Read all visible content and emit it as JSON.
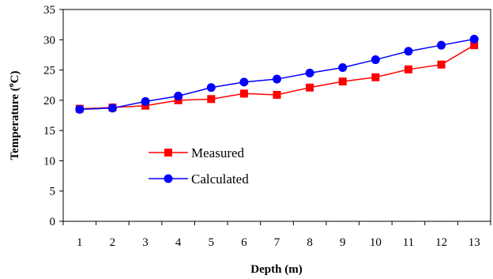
{
  "chart_data": {
    "type": "line",
    "xlabel": "Depth (m)",
    "ylabel": {
      "main": "Temperature (",
      "sup": "o",
      "unit": "C)"
    },
    "x": [
      1,
      2,
      3,
      4,
      5,
      6,
      7,
      8,
      9,
      10,
      11,
      12,
      13
    ],
    "ylim": [
      0,
      35
    ],
    "yticks": [
      0,
      5,
      10,
      15,
      20,
      25,
      30,
      35
    ],
    "grid": false,
    "legend_position": "center-left",
    "series": [
      {
        "name": "Measured",
        "color": "#FF0000",
        "marker": "square",
        "values": [
          18.6,
          18.8,
          19.1,
          20.0,
          20.2,
          21.1,
          20.9,
          22.1,
          23.1,
          23.8,
          25.1,
          25.9,
          29.1
        ]
      },
      {
        "name": "Calculated",
        "color": "#0000FF",
        "marker": "circle",
        "values": [
          18.5,
          18.7,
          19.8,
          20.7,
          22.1,
          23.0,
          23.5,
          24.5,
          25.4,
          26.7,
          28.1,
          29.1,
          30.1
        ]
      }
    ]
  }
}
